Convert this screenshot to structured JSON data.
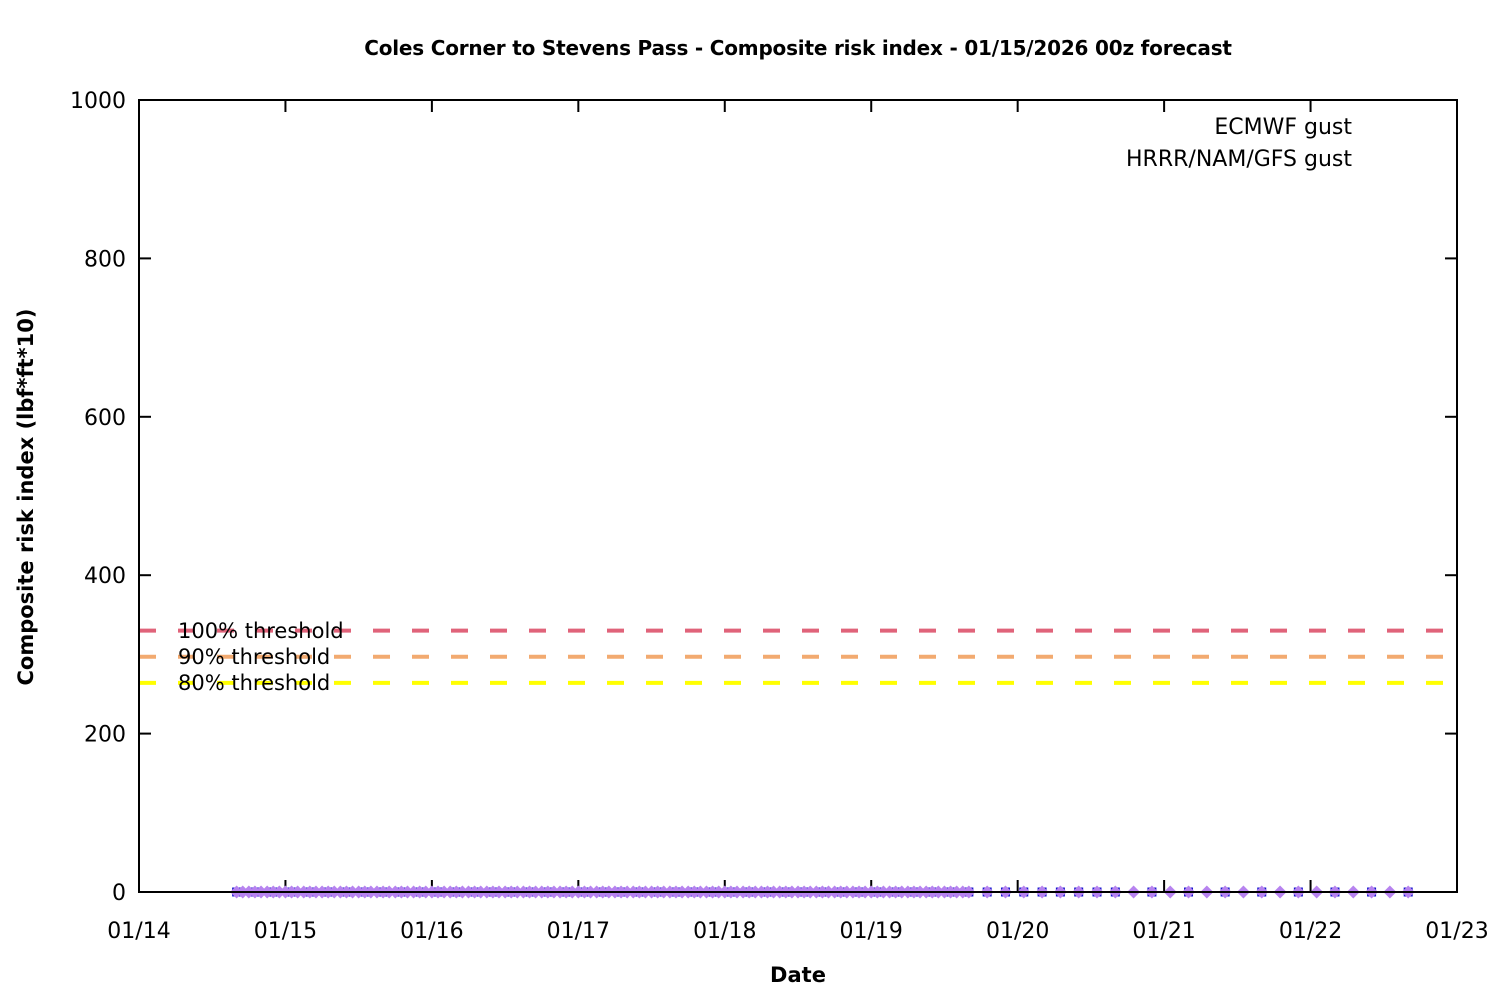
{
  "title": "Coles Corner to Stevens Pass - Composite risk index - 01/15/2026 00z forecast",
  "chart_data": {
    "type": "scatter",
    "title": "Coles Corner to Stevens Pass - Composite risk index - 01/15/2026 00z forecast",
    "xlabel": "Date",
    "ylabel": "Composite risk index (lbf*ft*10)",
    "x_ticks": [
      "01/14",
      "01/15",
      "01/16",
      "01/17",
      "01/18",
      "01/19",
      "01/20",
      "01/21",
      "01/22",
      "01/23"
    ],
    "x_span_days": 9,
    "y_ticks": [
      0,
      200,
      400,
      600,
      800,
      1000
    ],
    "ylim": [
      0,
      1000
    ],
    "grid": "off",
    "legend_position": "top-right-inside",
    "forecast_start_day_offset": 0.6667,
    "series": [
      {
        "name": "ECMWF gust",
        "marker": "square",
        "color": "#1414cc",
        "value_all_points": 0,
        "segments": [
          {
            "start_hour": 0,
            "end_hour": 144,
            "step_hours": 3
          },
          {
            "start_hour": 150,
            "end_hour": 192,
            "step_hours": 6
          }
        ]
      },
      {
        "name": "HRRR/NAM/GFS gust",
        "marker": "diamond",
        "color": "#b783ef",
        "value_all_points": 0,
        "segments": [
          {
            "start_hour": 0,
            "end_hour": 120,
            "step_hours": 1
          },
          {
            "start_hour": 123,
            "end_hour": 192,
            "step_hours": 3
          }
        ]
      }
    ],
    "thresholds": [
      {
        "label": "100% threshold",
        "value": 330,
        "color": "#e0637a"
      },
      {
        "label": "90% threshold",
        "value": 297,
        "color": "#f2aa70"
      },
      {
        "label": "80% threshold",
        "value": 264,
        "color": "#ffff00"
      }
    ],
    "axis_color": "#000000",
    "background_color": "#ffffff"
  }
}
